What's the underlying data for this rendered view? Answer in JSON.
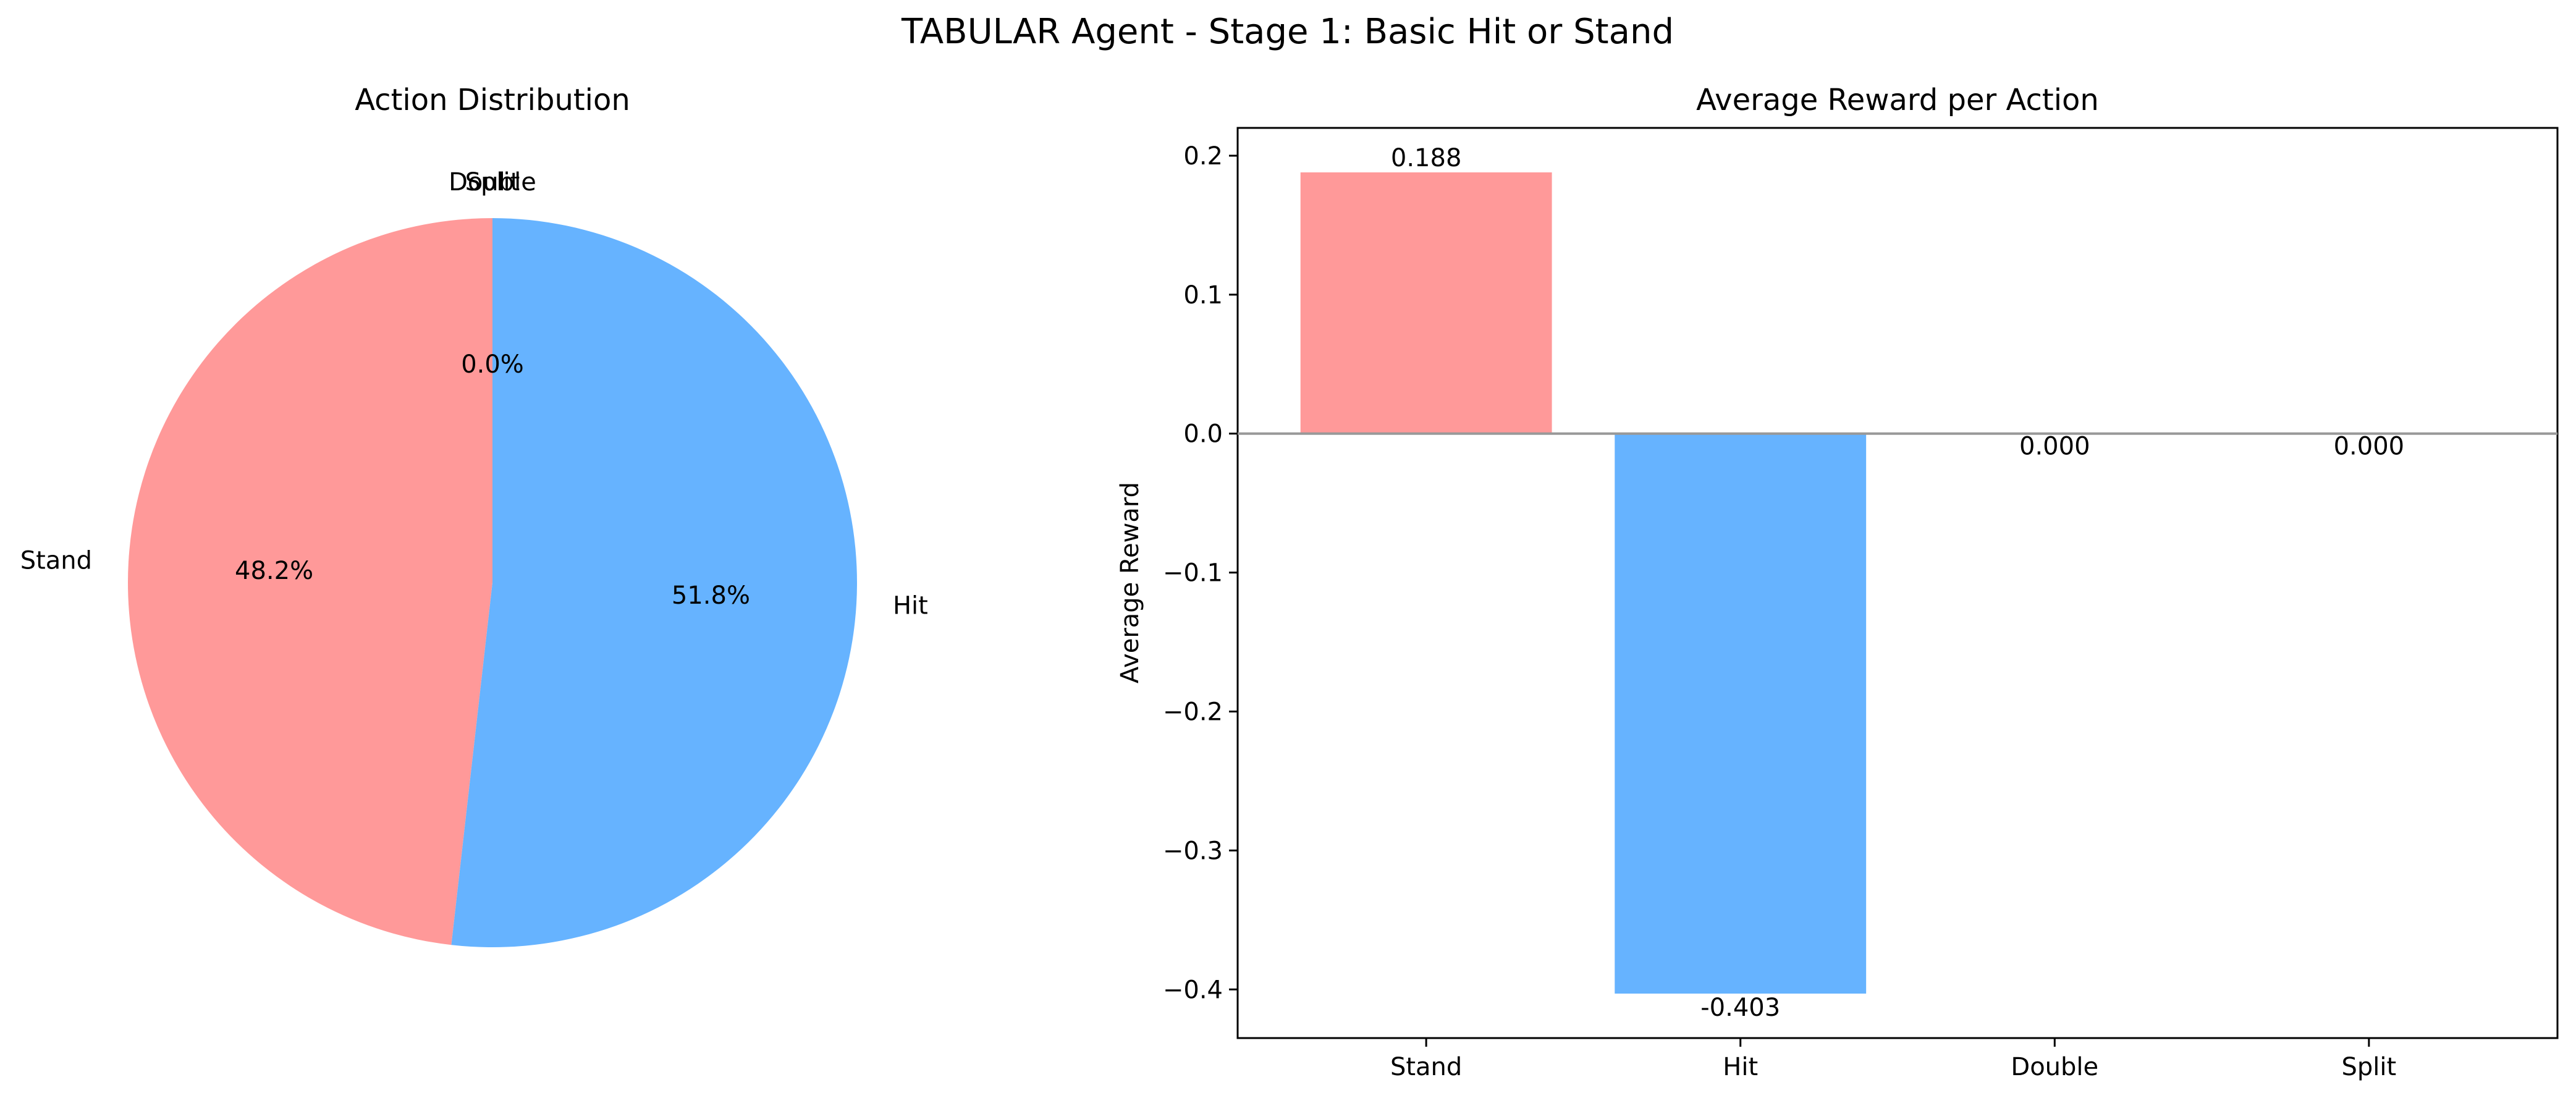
{
  "figure_title": "TABULAR Agent - Stage 1: Basic Hit or Stand",
  "chart_data": [
    {
      "type": "pie",
      "title": "Action Distribution",
      "labels": [
        "Stand",
        "Hit",
        "Double",
        "Split"
      ],
      "values": [
        48.2,
        51.8,
        0.0,
        0.0
      ],
      "autopct_labels": [
        "48.2%",
        "51.8%",
        "0.0%",
        "0.0%"
      ],
      "visible_pct_labels": [
        "48.2%",
        "51.8%",
        "0.0%"
      ],
      "start_angle_deg": 90,
      "direction": "counterclockwise",
      "colors": [
        "#ff9999",
        "#66b3ff",
        "#99ff99",
        "#ffcc99"
      ]
    },
    {
      "type": "bar",
      "title": "Average Reward per Action",
      "xlabel": "",
      "ylabel": "Average Reward",
      "categories": [
        "Stand",
        "Hit",
        "Double",
        "Split"
      ],
      "values": [
        0.188,
        -0.403,
        0.0,
        0.0
      ],
      "value_labels": [
        "0.188",
        "-0.403",
        "0.000",
        "0.000"
      ],
      "colors": [
        "#ff9999",
        "#66b3ff",
        "#99ff99",
        "#ffcc99"
      ],
      "ylim": [
        -0.435,
        0.22
      ],
      "yticks": [
        0.2,
        0.1,
        0.0,
        -0.1,
        -0.2,
        -0.3,
        -0.4
      ],
      "ytick_labels": [
        "0.2",
        "0.1",
        "0.0",
        "−0.1",
        "−0.2",
        "−0.3",
        "−0.4"
      ],
      "zero_line": true,
      "zero_line_color": "#999999",
      "grid": false
    }
  ]
}
